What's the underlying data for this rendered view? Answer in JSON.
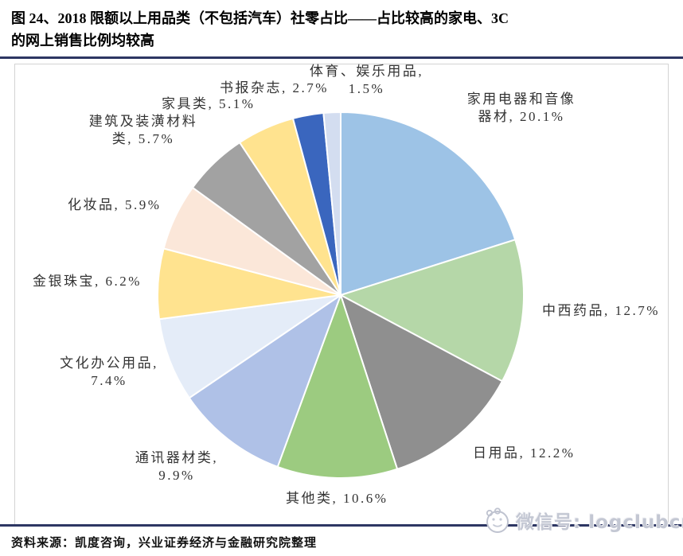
{
  "figure": {
    "title_line1": "图 24、2018 限额以上用品类（不包括汽车）社零占比——占比较高的家电、3C",
    "title_line2": "的网上销售比例均较高"
  },
  "chart_data": {
    "type": "pie",
    "title": "2018限额以上用品类（不包括汽车）社零占比",
    "start_angle_deg": 0,
    "direction": "clockwise",
    "labels_position": "outside",
    "slices": [
      {
        "label": "家用电器和音像器材",
        "value": 20.1,
        "color": "#9DC3E6"
      },
      {
        "label": "中西药品",
        "value": 12.7,
        "color": "#B5D7A8"
      },
      {
        "label": "日用品",
        "value": 12.2,
        "color": "#8F8F8F"
      },
      {
        "label": "其他类",
        "value": 10.6,
        "color": "#9CCB80"
      },
      {
        "label": "通讯器材类",
        "value": 9.9,
        "color": "#AFC1E7"
      },
      {
        "label": "文化办公用品",
        "value": 7.4,
        "color": "#E4ECF8"
      },
      {
        "label": "金银珠宝",
        "value": 6.2,
        "color": "#FFE38F"
      },
      {
        "label": "化妆品",
        "value": 5.9,
        "color": "#FBE7D9"
      },
      {
        "label": "建筑及装潢材料类",
        "value": 5.7,
        "color": "#A2A2A2"
      },
      {
        "label": "家具类",
        "value": 5.1,
        "color": "#FFE38F"
      },
      {
        "label": "书报杂志",
        "value": 2.7,
        "color": "#3A66BE"
      },
      {
        "label": "体育、娱乐用品",
        "value": 1.5,
        "color": "#D3DDF0"
      }
    ]
  },
  "callouts": [
    {
      "line1": "家用电器和音像",
      "line2": "器材, 20.1%"
    },
    {
      "line1": "中西药品, 12.7%"
    },
    {
      "line1": "日用品, 12.2%"
    },
    {
      "line1": "其他类, 10.6%"
    },
    {
      "line1": "通讯器材类,",
      "line2": "9.9%"
    },
    {
      "line1": "文化办公用品,",
      "line2": "7.4%"
    },
    {
      "line1": "金银珠宝, 6.2%"
    },
    {
      "line1": "化妆品, 5.9%"
    },
    {
      "line1": "建筑及装潢材料",
      "line2": "类, 5.7%"
    },
    {
      "line1": "家具类, 5.1%"
    },
    {
      "line1": "书报杂志, 2.7%"
    },
    {
      "line1": "体育、娱乐用品,",
      "line2": "1.5%"
    }
  ],
  "footer": {
    "source": "资料来源：凯度咨询，兴业证券经济与金融研究院整理"
  },
  "watermark": {
    "text": "微信号: logclubcn"
  },
  "colors": {
    "accent_rule": "#2D3663",
    "frame_border": "#D3D3D3",
    "label_text": "#333333",
    "slice_stroke": "#FFFFFF"
  }
}
